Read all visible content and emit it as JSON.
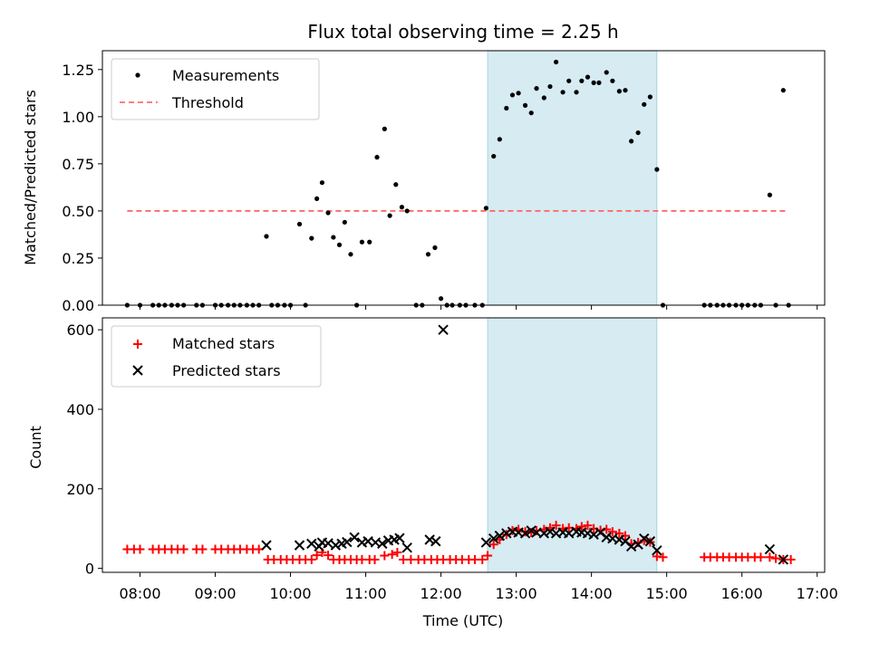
{
  "chart_data": [
    {
      "type": "scatter",
      "title": "Flux total observing time = 2.25 h",
      "ylabel": "Matched/Predicted stars",
      "xlim": [
        7.5,
        17.1
      ],
      "ylim": [
        0,
        1.35
      ],
      "yticks": [
        0,
        0.25,
        0.5,
        0.75,
        1.0,
        1.25
      ],
      "ytick_labels": [
        "0.00",
        "0.25",
        "0.50",
        "0.75",
        "1.00",
        "1.25"
      ],
      "shaded_span": [
        12.62,
        14.87
      ],
      "legend": {
        "position": "top-left",
        "entries": [
          "Measurements",
          "Threshold"
        ]
      },
      "threshold": {
        "name": "Threshold",
        "x": [
          7.83,
          16.6
        ],
        "y": 0.5,
        "color": "#ff6b6b"
      },
      "series": [
        {
          "name": "Measurements",
          "color": "#000000",
          "points": [
            [
              7.83,
              0
            ],
            [
              8.0,
              0
            ],
            [
              8.17,
              0
            ],
            [
              8.25,
              0
            ],
            [
              8.33,
              0
            ],
            [
              8.42,
              0
            ],
            [
              8.5,
              0
            ],
            [
              8.58,
              0
            ],
            [
              8.75,
              0
            ],
            [
              8.83,
              0
            ],
            [
              9.0,
              0
            ],
            [
              9.08,
              0
            ],
            [
              9.17,
              0
            ],
            [
              9.25,
              0
            ],
            [
              9.33,
              0
            ],
            [
              9.42,
              0
            ],
            [
              9.5,
              0
            ],
            [
              9.58,
              0
            ],
            [
              9.68,
              0.365
            ],
            [
              9.75,
              0
            ],
            [
              9.83,
              0
            ],
            [
              9.92,
              0
            ],
            [
              10.0,
              0
            ],
            [
              10.12,
              0.43
            ],
            [
              10.2,
              0
            ],
            [
              10.28,
              0.355
            ],
            [
              10.35,
              0.565
            ],
            [
              10.42,
              0.65
            ],
            [
              10.5,
              0.49
            ],
            [
              10.57,
              0.36
            ],
            [
              10.65,
              0.32
            ],
            [
              10.72,
              0.44
            ],
            [
              10.8,
              0.27
            ],
            [
              10.88,
              0
            ],
            [
              10.95,
              0.335
            ],
            [
              11.05,
              0.335
            ],
            [
              11.15,
              0.785
            ],
            [
              11.25,
              0.935
            ],
            [
              11.32,
              0.475
            ],
            [
              11.4,
              0.64
            ],
            [
              11.48,
              0.52
            ],
            [
              11.55,
              0.5
            ],
            [
              11.67,
              0
            ],
            [
              11.75,
              0
            ],
            [
              11.83,
              0.27
            ],
            [
              11.92,
              0.305
            ],
            [
              12.0,
              0.035
            ],
            [
              12.08,
              0
            ],
            [
              12.15,
              0
            ],
            [
              12.25,
              0
            ],
            [
              12.33,
              0
            ],
            [
              12.45,
              0
            ],
            [
              12.55,
              0
            ],
            [
              12.6,
              0.515
            ],
            [
              12.7,
              0.79
            ],
            [
              12.78,
              0.88
            ],
            [
              12.87,
              1.045
            ],
            [
              12.95,
              1.115
            ],
            [
              13.03,
              1.125
            ],
            [
              13.12,
              1.06
            ],
            [
              13.2,
              1.02
            ],
            [
              13.27,
              1.15
            ],
            [
              13.37,
              1.1
            ],
            [
              13.45,
              1.16
            ],
            [
              13.53,
              1.29
            ],
            [
              13.62,
              1.13
            ],
            [
              13.7,
              1.19
            ],
            [
              13.8,
              1.13
            ],
            [
              13.87,
              1.19
            ],
            [
              13.95,
              1.21
            ],
            [
              14.03,
              1.18
            ],
            [
              14.1,
              1.18
            ],
            [
              14.2,
              1.235
            ],
            [
              14.28,
              1.19
            ],
            [
              14.37,
              1.135
            ],
            [
              14.45,
              1.14
            ],
            [
              14.53,
              0.87
            ],
            [
              14.62,
              0.915
            ],
            [
              14.7,
              1.065
            ],
            [
              14.78,
              1.105
            ],
            [
              14.87,
              0.72
            ],
            [
              14.95,
              0
            ],
            [
              15.5,
              0
            ],
            [
              15.58,
              0
            ],
            [
              15.67,
              0
            ],
            [
              15.75,
              0
            ],
            [
              15.83,
              0
            ],
            [
              15.92,
              0
            ],
            [
              16.0,
              0
            ],
            [
              16.08,
              0
            ],
            [
              16.17,
              0
            ],
            [
              16.25,
              0
            ],
            [
              16.37,
              0.585
            ],
            [
              16.45,
              0
            ],
            [
              16.55,
              1.14
            ],
            [
              16.62,
              0
            ]
          ]
        }
      ]
    },
    {
      "type": "scatter",
      "xlabel": "Time (UTC)",
      "ylabel": "Count",
      "xlim": [
        7.5,
        17.1
      ],
      "ylim": [
        -10,
        630
      ],
      "yticks": [
        0,
        200,
        400,
        600
      ],
      "ytick_labels": [
        "0",
        "200",
        "400",
        "600"
      ],
      "xticks": [
        8,
        9,
        10,
        11,
        12,
        13,
        14,
        15,
        16,
        17
      ],
      "xtick_labels": [
        "08:00",
        "09:00",
        "10:00",
        "11:00",
        "12:00",
        "13:00",
        "14:00",
        "15:00",
        "16:00",
        "17:00"
      ],
      "shaded_span": [
        12.62,
        14.87
      ],
      "legend": {
        "position": "top-left",
        "entries": [
          "Matched stars",
          "Predicted stars"
        ]
      },
      "series": [
        {
          "name": "Matched stars",
          "marker": "+",
          "color": "#ff0000",
          "points": [
            [
              7.83,
              48
            ],
            [
              7.92,
              48
            ],
            [
              8.0,
              48
            ],
            [
              8.17,
              48
            ],
            [
              8.25,
              48
            ],
            [
              8.33,
              48
            ],
            [
              8.42,
              48
            ],
            [
              8.5,
              48
            ],
            [
              8.58,
              48
            ],
            [
              8.75,
              48
            ],
            [
              8.83,
              48
            ],
            [
              9.0,
              48
            ],
            [
              9.08,
              48
            ],
            [
              9.17,
              48
            ],
            [
              9.25,
              48
            ],
            [
              9.33,
              48
            ],
            [
              9.42,
              48
            ],
            [
              9.5,
              48
            ],
            [
              9.58,
              48
            ],
            [
              9.7,
              22
            ],
            [
              9.78,
              22
            ],
            [
              9.87,
              22
            ],
            [
              9.95,
              22
            ],
            [
              10.03,
              22
            ],
            [
              10.12,
              22
            ],
            [
              10.2,
              22
            ],
            [
              10.28,
              22
            ],
            [
              10.35,
              33
            ],
            [
              10.42,
              40
            ],
            [
              10.5,
              33
            ],
            [
              10.57,
              22
            ],
            [
              10.65,
              22
            ],
            [
              10.72,
              22
            ],
            [
              10.8,
              22
            ],
            [
              10.88,
              22
            ],
            [
              10.95,
              22
            ],
            [
              11.05,
              22
            ],
            [
              11.12,
              22
            ],
            [
              11.25,
              32
            ],
            [
              11.35,
              35
            ],
            [
              11.42,
              40
            ],
            [
              11.5,
              22
            ],
            [
              11.6,
              22
            ],
            [
              11.7,
              22
            ],
            [
              11.78,
              22
            ],
            [
              11.87,
              22
            ],
            [
              11.95,
              22
            ],
            [
              12.03,
              22
            ],
            [
              12.12,
              22
            ],
            [
              12.2,
              22
            ],
            [
              12.28,
              22
            ],
            [
              12.37,
              22
            ],
            [
              12.45,
              22
            ],
            [
              12.55,
              22
            ],
            [
              12.62,
              32
            ],
            [
              12.7,
              60
            ],
            [
              12.78,
              72
            ],
            [
              12.87,
              85
            ],
            [
              12.95,
              95
            ],
            [
              13.03,
              98
            ],
            [
              13.12,
              92
            ],
            [
              13.2,
              90
            ],
            [
              13.27,
              95
            ],
            [
              13.37,
              98
            ],
            [
              13.45,
              102
            ],
            [
              13.53,
              108
            ],
            [
              13.62,
              100
            ],
            [
              13.7,
              102
            ],
            [
              13.8,
              100
            ],
            [
              13.87,
              105
            ],
            [
              13.95,
              108
            ],
            [
              14.03,
              100
            ],
            [
              14.12,
              96
            ],
            [
              14.2,
              98
            ],
            [
              14.28,
              92
            ],
            [
              14.37,
              88
            ],
            [
              14.45,
              82
            ],
            [
              14.53,
              62
            ],
            [
              14.62,
              65
            ],
            [
              14.7,
              70
            ],
            [
              14.78,
              66
            ],
            [
              14.87,
              30
            ],
            [
              14.95,
              28
            ],
            [
              15.5,
              28
            ],
            [
              15.58,
              28
            ],
            [
              15.67,
              28
            ],
            [
              15.75,
              28
            ],
            [
              15.83,
              28
            ],
            [
              15.92,
              28
            ],
            [
              16.0,
              28
            ],
            [
              16.08,
              28
            ],
            [
              16.17,
              28
            ],
            [
              16.25,
              28
            ],
            [
              16.37,
              28
            ],
            [
              16.45,
              25
            ],
            [
              16.55,
              22
            ],
            [
              16.65,
              22
            ]
          ]
        },
        {
          "name": "Predicted stars",
          "marker": "x",
          "color": "#000000",
          "points": [
            [
              9.68,
              58
            ],
            [
              10.12,
              58
            ],
            [
              10.28,
              62
            ],
            [
              10.38,
              55
            ],
            [
              10.42,
              65
            ],
            [
              10.5,
              63
            ],
            [
              10.6,
              58
            ],
            [
              10.68,
              62
            ],
            [
              10.75,
              66
            ],
            [
              10.85,
              78
            ],
            [
              10.95,
              65
            ],
            [
              11.03,
              68
            ],
            [
              11.13,
              65
            ],
            [
              11.22,
              62
            ],
            [
              11.3,
              70
            ],
            [
              11.38,
              72
            ],
            [
              11.45,
              76
            ],
            [
              11.55,
              52
            ],
            [
              11.85,
              72
            ],
            [
              11.93,
              68
            ],
            [
              12.03,
              600
            ],
            [
              12.6,
              65
            ],
            [
              12.7,
              75
            ],
            [
              12.78,
              82
            ],
            [
              12.87,
              88
            ],
            [
              12.95,
              92
            ],
            [
              13.03,
              90
            ],
            [
              13.12,
              88
            ],
            [
              13.2,
              95
            ],
            [
              13.27,
              90
            ],
            [
              13.37,
              88
            ],
            [
              13.45,
              92
            ],
            [
              13.53,
              88
            ],
            [
              13.62,
              90
            ],
            [
              13.7,
              88
            ],
            [
              13.8,
              92
            ],
            [
              13.87,
              90
            ],
            [
              13.95,
              88
            ],
            [
              14.03,
              85
            ],
            [
              14.12,
              90
            ],
            [
              14.2,
              78
            ],
            [
              14.28,
              75
            ],
            [
              14.37,
              72
            ],
            [
              14.45,
              68
            ],
            [
              14.53,
              55
            ],
            [
              14.62,
              60
            ],
            [
              14.7,
              75
            ],
            [
              14.78,
              68
            ],
            [
              14.87,
              45
            ],
            [
              16.37,
              48
            ],
            [
              16.55,
              22
            ]
          ]
        }
      ]
    }
  ]
}
